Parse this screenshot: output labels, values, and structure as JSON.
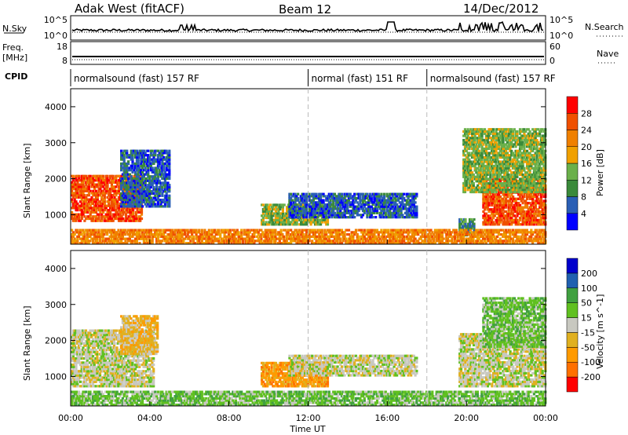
{
  "header": {
    "station": "Adak West (fitACF)",
    "beam": "Beam 12",
    "date": "14/Dec/2012"
  },
  "left_labels": {
    "nsky": "N.Sky",
    "freq_line1": "Freq.",
    "freq_line2": "[MHz]",
    "cpid": "CPID"
  },
  "right_labels": {
    "nsearch": "N.Search",
    "nave": "Nave"
  },
  "noise_axis": {
    "left_top": "10^5",
    "left_bottom": "10^0",
    "right_top": "10^5",
    "right_bottom": "10^0"
  },
  "freq_axis": {
    "left_top": "18",
    "left_bottom": "8",
    "right_top": "60",
    "right_bottom": "0"
  },
  "cpid_segments": [
    {
      "label": "normalsound (fast) 157 RF",
      "start_hour": 0,
      "end_hour": 12
    },
    {
      "label": "normal (fast) 151 RF",
      "start_hour": 12,
      "end_hour": 18
    },
    {
      "label": "normalsound (fast) 157 RF",
      "start_hour": 18,
      "end_hour": 24
    }
  ],
  "colors": {
    "power": [
      "#0000ff",
      "#2a5fb5",
      "#3a8a3a",
      "#6ab04a",
      "#f0a000",
      "#f08000",
      "#f05000",
      "#ff0000"
    ],
    "velocity": [
      "#ff0000",
      "#ff7000",
      "#ff9a00",
      "#e0b020",
      "#c8c8c0",
      "#60c020",
      "#40a040",
      "#2060b0",
      "#0000cc"
    ]
  },
  "chart_data": [
    {
      "type": "heatmap",
      "name": "power",
      "ylabel": "Slant Range [km]",
      "colorbar_label": "Power [dB]",
      "colorbar_ticks": [
        "4",
        "8",
        "12",
        "16",
        "20",
        "24",
        "28"
      ],
      "ylim": [
        180,
        4500
      ],
      "yticks": [
        1000,
        2000,
        3000,
        4000
      ],
      "xlim": [
        0,
        24
      ],
      "regions": [
        {
          "t0": 0,
          "t1": 3.6,
          "r0": 800,
          "r1": 2100,
          "level": 6
        },
        {
          "t0": 2.5,
          "t1": 5.0,
          "r0": 1200,
          "r1": 2800,
          "level": 1
        },
        {
          "t0": 9.6,
          "t1": 13.0,
          "r0": 700,
          "r1": 1300,
          "level": 3
        },
        {
          "t0": 11.0,
          "t1": 17.5,
          "r0": 900,
          "r1": 1600,
          "level": 1
        },
        {
          "t0": 19.6,
          "t1": 20.4,
          "r0": 400,
          "r1": 900,
          "level": 2
        },
        {
          "t0": 20.8,
          "t1": 24,
          "r0": 700,
          "r1": 2000,
          "level": 6
        },
        {
          "t0": 19.8,
          "t1": 24,
          "r0": 1600,
          "r1": 3400,
          "level": 3
        },
        {
          "t0": 0,
          "t1": 24,
          "r0": 180,
          "r1": 600,
          "level": 5
        }
      ]
    },
    {
      "type": "heatmap",
      "name": "velocity",
      "ylabel": "Slant Range [km]",
      "colorbar_label": "Velocity [m s^-1]",
      "colorbar_ticks": [
        "-200",
        "-100",
        "-50",
        "-15",
        "15",
        "50",
        "100",
        "200"
      ],
      "ylim": [
        180,
        4500
      ],
      "yticks": [
        1000,
        2000,
        3000,
        4000
      ],
      "xlim": [
        0,
        24
      ],
      "xticks": [
        "00:00",
        "04:00",
        "08:00",
        "12:00",
        "16:00",
        "20:00",
        "00:00"
      ],
      "xlabel": "Time UT",
      "regions": [
        {
          "t0": 0,
          "t1": 4.2,
          "r0": 700,
          "r1": 2300,
          "level": 4
        },
        {
          "t0": 2.5,
          "t1": 4.4,
          "r0": 1600,
          "r1": 2700,
          "level": 3
        },
        {
          "t0": 9.6,
          "t1": 13.0,
          "r0": 700,
          "r1": 1400,
          "level": 2
        },
        {
          "t0": 11.0,
          "t1": 17.5,
          "r0": 1000,
          "r1": 1600,
          "level": 4
        },
        {
          "t0": 19.6,
          "t1": 24,
          "r0": 700,
          "r1": 2200,
          "level": 4
        },
        {
          "t0": 20.8,
          "t1": 24,
          "r0": 1800,
          "r1": 3200,
          "level": 5
        },
        {
          "t0": 0,
          "t1": 24,
          "r0": 180,
          "r1": 600,
          "level": 5
        }
      ]
    }
  ]
}
